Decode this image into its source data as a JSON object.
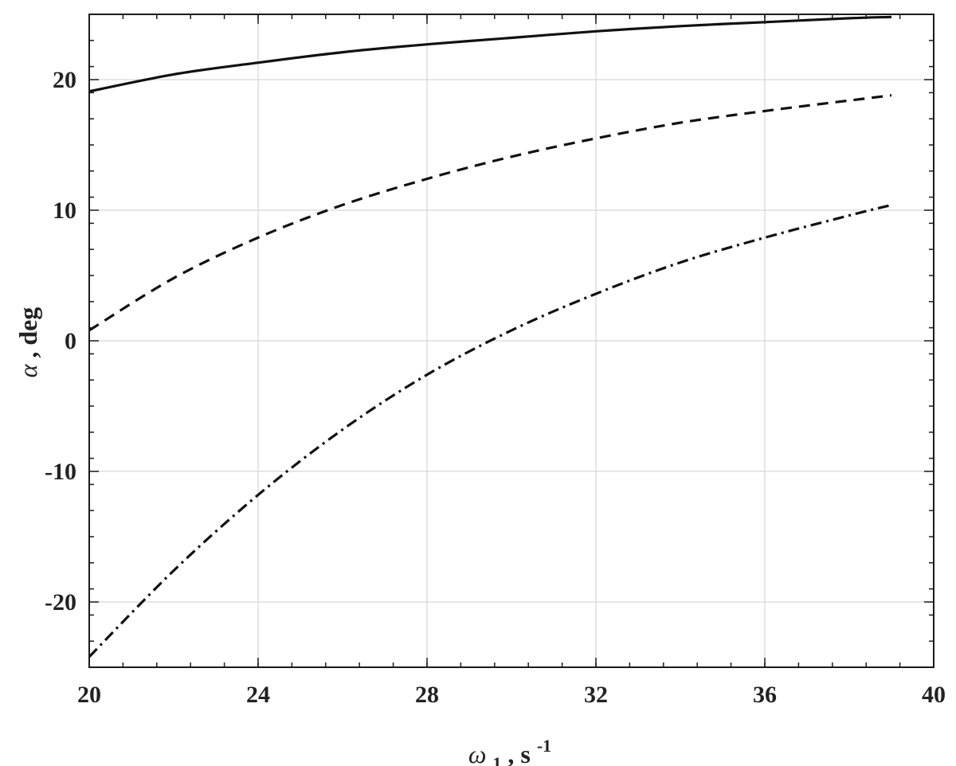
{
  "chart_data": {
    "type": "line",
    "title": "",
    "xlabel": {
      "symbol": "ω",
      "subscript": "1",
      "text": ", s",
      "superscript": "-1"
    },
    "ylabel": {
      "symbol": "α",
      "text": ", deg"
    },
    "xlim": [
      20,
      40
    ],
    "ylim": [
      -25,
      25
    ],
    "xticks": [
      20,
      24,
      28,
      32,
      36,
      40
    ],
    "xtick_labels": [
      "20",
      "24",
      "28",
      "32",
      "36",
      "40"
    ],
    "yticks": [
      -20,
      -10,
      0,
      10,
      20
    ],
    "ytick_labels": [
      "-20",
      "-10",
      "0",
      "10",
      "20"
    ],
    "grid": true,
    "legend": "none",
    "series": [
      {
        "style": "solid",
        "x": [
          20,
          22,
          24,
          26,
          28,
          30,
          32,
          34,
          36,
          38,
          39
        ],
        "y": [
          19.1,
          20.4,
          21.3,
          22.1,
          22.7,
          23.2,
          23.7,
          24.1,
          24.4,
          24.7,
          24.8
        ]
      },
      {
        "style": "dashed",
        "x": [
          20,
          22,
          24,
          26,
          28,
          30,
          32,
          34,
          36,
          38,
          39
        ],
        "y": [
          0.8,
          4.8,
          7.9,
          10.4,
          12.4,
          14.1,
          15.5,
          16.7,
          17.6,
          18.4,
          18.8
        ]
      },
      {
        "style": "dashdot",
        "x": [
          20,
          22,
          24,
          26,
          28,
          30,
          32,
          34,
          36,
          38,
          39
        ],
        "y": [
          -24.2,
          -17.6,
          -11.8,
          -6.8,
          -2.6,
          0.8,
          3.6,
          6.0,
          7.9,
          9.6,
          10.4
        ]
      }
    ]
  }
}
